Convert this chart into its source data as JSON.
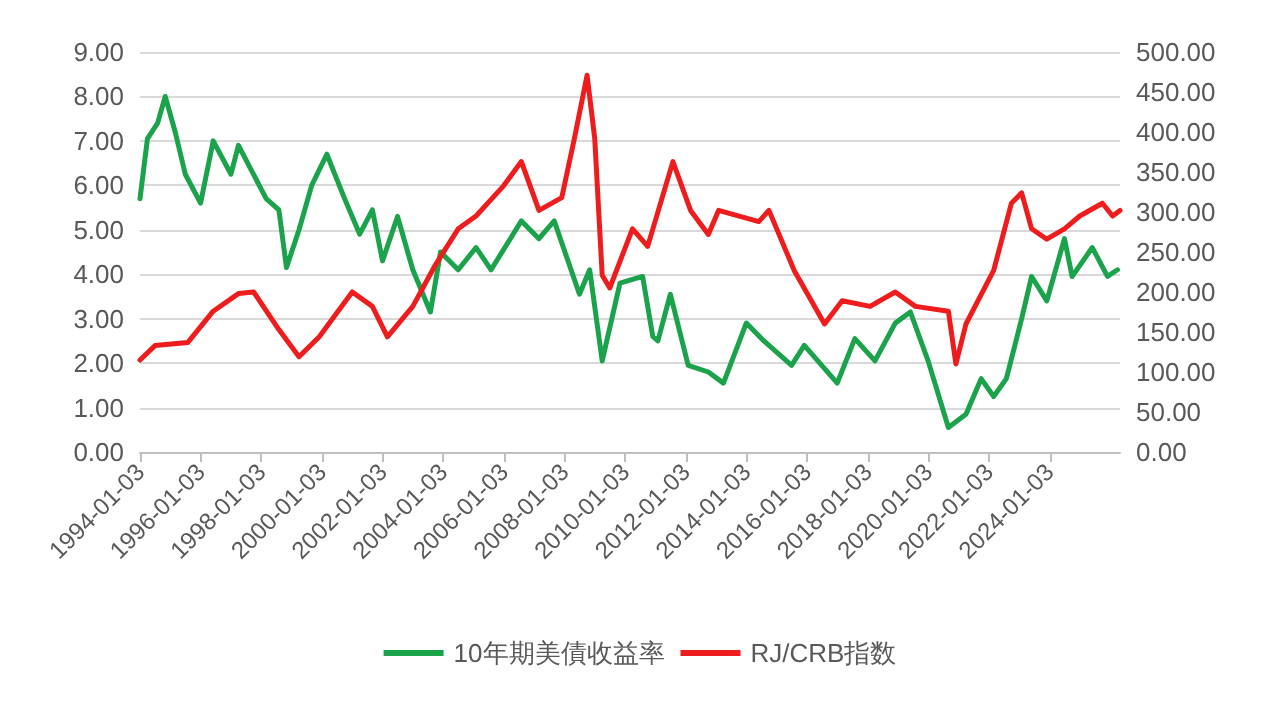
{
  "chart_data": {
    "type": "line",
    "legend": "bottom",
    "grid": "y",
    "marker": "none",
    "line_style": "solid",
    "xlim": [
      "1994-01",
      "2026-05"
    ],
    "xticks": [
      "1994-01-03",
      "1996-01-03",
      "1998-01-03",
      "2000-01-03",
      "2002-01-03",
      "2004-01-03",
      "2006-01-03",
      "2008-01-03",
      "2010-01-03",
      "2012-01-03",
      "2014-01-03",
      "2016-01-03",
      "2018-01-03",
      "2020-01-03",
      "2022-01-03",
      "2024-01-03"
    ],
    "ylim": [
      0,
      9
    ],
    "yticks": [
      {
        "value": 0,
        "label": "0.00"
      },
      {
        "value": 1,
        "label": "1.00"
      },
      {
        "value": 2,
        "label": "2.00"
      },
      {
        "value": 3,
        "label": "3.00"
      },
      {
        "value": 4,
        "label": "4.00"
      },
      {
        "value": 5,
        "label": "5.00"
      },
      {
        "value": 6,
        "label": "6.00"
      },
      {
        "value": 7,
        "label": "7.00"
      },
      {
        "value": 8,
        "label": "8.00"
      },
      {
        "value": 9,
        "label": "9.00"
      }
    ],
    "y2lim": [
      0,
      500
    ],
    "y2ticks": [
      {
        "value": 0,
        "label": "0.00"
      },
      {
        "value": 50,
        "label": "50.00"
      },
      {
        "value": 100,
        "label": "100.00"
      },
      {
        "value": 150,
        "label": "150.00"
      },
      {
        "value": 200,
        "label": "200.00"
      },
      {
        "value": 250,
        "label": "250.00"
      },
      {
        "value": 300,
        "label": "300.00"
      },
      {
        "value": 350,
        "label": "350.00"
      },
      {
        "value": 400,
        "label": "400.00"
      },
      {
        "value": 450,
        "label": "450.00"
      },
      {
        "value": 500,
        "label": "500.00"
      }
    ],
    "series": [
      {
        "name": "10年期美債收益率",
        "color": "#1aa34a",
        "x": [
          "1994-01",
          "1994-04",
          "1994-08",
          "1994-11",
          "1995-03",
          "1995-07",
          "1996-01",
          "1996-06",
          "1997-01",
          "1997-04",
          "1998-03",
          "1998-08",
          "1998-11",
          "1999-04",
          "1999-09",
          "2000-03",
          "2000-10",
          "2001-04",
          "2001-09",
          "2002-01",
          "2002-07",
          "2003-01",
          "2003-08",
          "2003-12",
          "2004-07",
          "2005-02",
          "2005-08",
          "2006-08",
          "2007-03",
          "2007-09",
          "2008-07",
          "2008-11",
          "2009-04",
          "2009-11",
          "2010-08",
          "2010-12",
          "2011-02",
          "2011-07",
          "2012-02",
          "2012-10",
          "2013-04",
          "2014-01",
          "2014-08",
          "2015-07",
          "2015-12",
          "2017-01",
          "2017-08",
          "2018-04",
          "2018-12",
          "2019-06",
          "2020-01",
          "2020-09",
          "2021-04",
          "2021-10",
          "2022-03",
          "2022-08",
          "2023-02",
          "2023-06",
          "2023-12",
          "2024-07",
          "2024-10",
          "2025-06",
          "2025-12",
          "2026-04"
        ],
        "values": [
          5.7,
          7.05,
          7.4,
          8.0,
          7.2,
          6.25,
          5.6,
          7.0,
          6.25,
          6.9,
          5.7,
          5.45,
          4.15,
          5.0,
          6.0,
          6.7,
          5.7,
          4.9,
          5.45,
          4.3,
          5.3,
          4.1,
          3.15,
          4.5,
          4.1,
          4.6,
          4.1,
          5.2,
          4.8,
          5.2,
          3.55,
          4.1,
          2.05,
          3.8,
          3.95,
          2.6,
          2.5,
          3.55,
          1.95,
          1.8,
          1.55,
          2.9,
          2.5,
          1.95,
          2.4,
          1.55,
          2.55,
          2.05,
          2.9,
          3.15,
          2.05,
          0.55,
          0.85,
          1.65,
          1.25,
          1.65,
          3.0,
          3.95,
          3.4,
          4.8,
          3.95,
          4.6,
          3.95,
          4.1
        ]
      },
      {
        "name": "RJ/CRB指数",
        "color": "#ee1c1c",
        "axis": "y2",
        "x": [
          "1994-01",
          "1994-07",
          "1995-08",
          "1996-06",
          "1997-04",
          "1997-10",
          "1998-08",
          "1999-04",
          "1999-12",
          "2001-01",
          "2001-09",
          "2002-03",
          "2003-01",
          "2003-10",
          "2004-07",
          "2005-02",
          "2006-01",
          "2006-08",
          "2007-03",
          "2007-12",
          "2008-05",
          "2008-10",
          "2009-01",
          "2009-04",
          "2009-07",
          "2010-04",
          "2010-10",
          "2011-08",
          "2012-03",
          "2012-10",
          "2013-02",
          "2014-06",
          "2014-10",
          "2015-08",
          "2016-08",
          "2017-03",
          "2018-02",
          "2018-12",
          "2019-08",
          "2020-09",
          "2020-12",
          "2021-04",
          "2022-03",
          "2022-10",
          "2023-02",
          "2023-06",
          "2023-12",
          "2024-07",
          "2025-01",
          "2025-10",
          "2026-02",
          "2026-05"
        ],
        "values": [
          115,
          133,
          137,
          176,
          198,
          200,
          153,
          119,
          144,
          200,
          182,
          144,
          182,
          234,
          279,
          295,
          333,
          363,
          302,
          318,
          392,
          471,
          392,
          221,
          205,
          279,
          257,
          363,
          302,
          272,
          302,
          288,
          302,
          227,
          160,
          189,
          182,
          200,
          182,
          176,
          110,
          160,
          227,
          311,
          324,
          279,
          266,
          279,
          295,
          311,
          295,
          302
        ]
      }
    ]
  }
}
